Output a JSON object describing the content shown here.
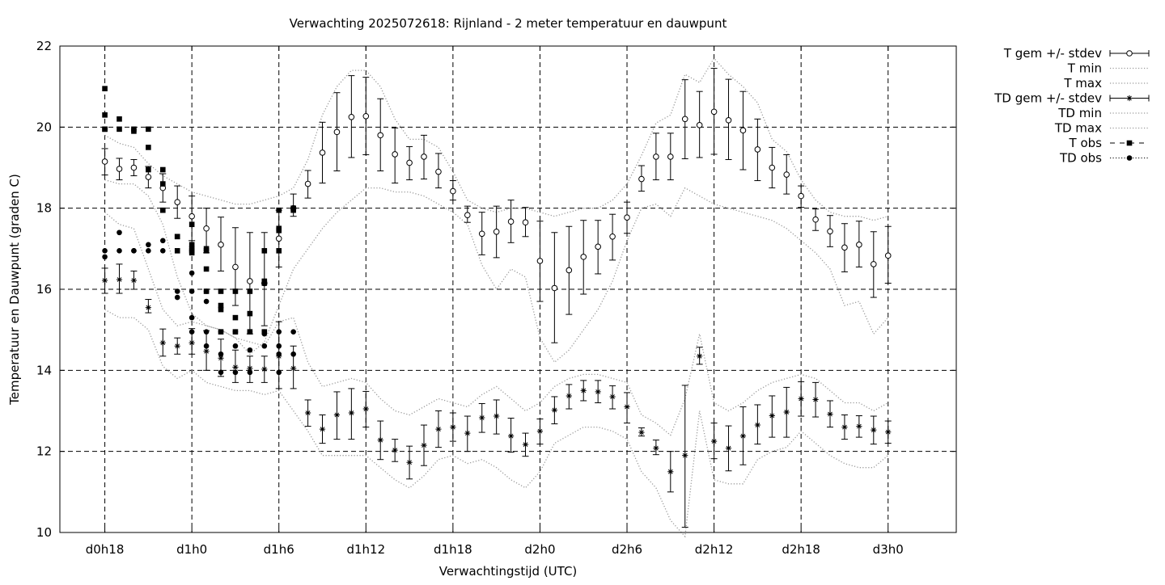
{
  "chart_data": {
    "type": "line",
    "title": "Verwachting 2025072618: Rijnland - 2 meter temperatuur en dauwpunt",
    "xlabel": "Verwachtingstijd (UTC)",
    "ylabel": "Temperatuur en Dauwpunt (graden C)",
    "x_ticks": [
      "d0h18",
      "d1h0",
      "d1h6",
      "d1h12",
      "d1h18",
      "d2h0",
      "d2h6",
      "d2h12",
      "d2h18",
      "d3h0"
    ],
    "x_tick_hours": [
      18,
      24,
      30,
      36,
      42,
      48,
      54,
      60,
      66,
      72
    ],
    "xlim": [
      14.9,
      76.7
    ],
    "ylim": [
      10,
      22
    ],
    "y_ticks": [
      10,
      12,
      14,
      16,
      18,
      20,
      22
    ],
    "grid": true,
    "legend_position": "outside-right",
    "series": [
      {
        "name": "T gem +/- stdev",
        "style": "errorbar-open-circle",
        "x": [
          18,
          19,
          20,
          21,
          22,
          23,
          24,
          25,
          26,
          27,
          28,
          29,
          30,
          31,
          32,
          33,
          34,
          35,
          36,
          37,
          38,
          39,
          40,
          41,
          42,
          43,
          44,
          45,
          46,
          47,
          48,
          49,
          50,
          51,
          52,
          53,
          54,
          55,
          56,
          57,
          58,
          59,
          60,
          61,
          62,
          63,
          64,
          65,
          66,
          67,
          68,
          69,
          70,
          71,
          72
        ],
        "y": [
          19.15,
          18.97,
          19.0,
          18.77,
          18.5,
          18.15,
          17.8,
          17.5,
          17.1,
          16.55,
          16.2,
          16.15,
          17.25,
          18.0,
          18.6,
          19.37,
          19.88,
          20.25,
          20.27,
          19.8,
          19.33,
          19.12,
          19.27,
          18.9,
          18.42,
          17.83,
          17.37,
          17.42,
          17.67,
          17.65,
          16.7,
          16.03,
          16.47,
          16.8,
          17.05,
          17.3,
          17.77,
          18.72,
          19.27,
          19.27,
          20.2,
          20.05,
          20.38,
          20.17,
          19.92,
          19.45,
          19.0,
          18.83,
          18.3,
          17.72,
          17.43,
          17.03,
          17.1,
          16.62,
          16.83
        ],
        "y_low": [
          18.82,
          18.7,
          18.8,
          18.5,
          18.15,
          17.75,
          17.2,
          16.9,
          16.45,
          15.6,
          14.9,
          15.1,
          16.55,
          17.8,
          18.25,
          18.62,
          18.92,
          19.25,
          19.32,
          18.92,
          18.62,
          18.7,
          18.72,
          18.5,
          18.2,
          17.65,
          16.85,
          16.78,
          17.15,
          17.3,
          15.7,
          14.68,
          15.38,
          15.88,
          16.38,
          16.72,
          17.38,
          18.42,
          18.7,
          18.7,
          19.22,
          19.25,
          19.33,
          19.2,
          18.95,
          18.68,
          18.5,
          18.35,
          18.02,
          17.45,
          17.05,
          16.43,
          16.55,
          15.8,
          16.15
        ],
        "y_high": [
          19.47,
          19.23,
          19.2,
          19.03,
          18.85,
          18.55,
          18.3,
          18.0,
          17.78,
          17.52,
          17.4,
          17.4,
          17.95,
          18.35,
          18.93,
          20.12,
          20.85,
          21.27,
          21.23,
          20.7,
          19.98,
          19.52,
          19.8,
          19.35,
          18.68,
          18.05,
          17.9,
          18.05,
          18.2,
          18.02,
          17.68,
          17.4,
          17.55,
          17.7,
          17.7,
          17.85,
          18.15,
          19.05,
          19.85,
          19.85,
          21.17,
          20.88,
          21.45,
          21.18,
          20.88,
          20.2,
          19.5,
          19.32,
          18.55,
          17.98,
          17.82,
          17.62,
          17.68,
          17.42,
          17.55
        ]
      },
      {
        "name": "T min",
        "style": "dotted",
        "x": [
          18,
          19,
          20,
          21,
          22,
          23,
          24,
          25,
          26,
          27,
          28,
          29,
          30,
          31,
          32,
          33,
          34,
          35,
          36,
          37,
          38,
          39,
          40,
          41,
          42,
          43,
          44,
          45,
          46,
          47,
          48,
          49,
          50,
          51,
          52,
          53,
          54,
          55,
          56,
          57,
          58,
          59,
          60,
          61,
          62,
          63,
          64,
          65,
          66,
          67,
          68,
          69,
          70,
          71,
          72
        ],
        "y": [
          18.7,
          18.6,
          18.6,
          18.3,
          17.6,
          16.3,
          15.4,
          15.1,
          15.0,
          14.8,
          14.4,
          14.7,
          15.6,
          16.5,
          17.0,
          17.5,
          17.9,
          18.2,
          18.5,
          18.5,
          18.4,
          18.4,
          18.3,
          18.1,
          17.9,
          17.6,
          16.6,
          16.0,
          16.5,
          16.3,
          14.8,
          14.2,
          14.5,
          15.0,
          15.5,
          16.2,
          17.2,
          18.0,
          18.1,
          17.8,
          18.5,
          18.3,
          18.1,
          18.0,
          17.9,
          17.8,
          17.7,
          17.5,
          17.2,
          16.9,
          16.5,
          15.6,
          15.7,
          14.9,
          15.3
        ]
      },
      {
        "name": "T max",
        "style": "dotted",
        "x": [
          18,
          19,
          20,
          21,
          22,
          23,
          24,
          25,
          26,
          27,
          28,
          29,
          30,
          31,
          32,
          33,
          34,
          35,
          36,
          37,
          38,
          39,
          40,
          41,
          42,
          43,
          44,
          45,
          46,
          47,
          48,
          49,
          50,
          51,
          52,
          53,
          54,
          55,
          56,
          57,
          58,
          59,
          60,
          61,
          62,
          63,
          64,
          65,
          66,
          67,
          68,
          69,
          70,
          71,
          72
        ],
        "y": [
          19.8,
          19.6,
          19.5,
          19.1,
          18.8,
          18.6,
          18.4,
          18.3,
          18.2,
          18.1,
          18.1,
          18.2,
          18.3,
          18.5,
          19.2,
          20.3,
          21.0,
          21.4,
          21.4,
          21.0,
          20.2,
          19.7,
          19.7,
          19.5,
          18.9,
          18.2,
          18.0,
          17.9,
          18.0,
          18.0,
          17.9,
          17.8,
          17.9,
          18.0,
          18.0,
          18.2,
          18.6,
          19.3,
          20.1,
          20.3,
          21.3,
          21.1,
          21.7,
          21.3,
          21.0,
          20.6,
          19.7,
          19.4,
          18.7,
          18.2,
          17.9,
          17.8,
          17.8,
          17.7,
          17.8
        ]
      },
      {
        "name": "TD gem +/- stdev",
        "style": "errorbar-star",
        "x": [
          18,
          19,
          20,
          21,
          22,
          23,
          24,
          25,
          26,
          27,
          28,
          29,
          30,
          31,
          32,
          33,
          34,
          35,
          36,
          37,
          38,
          39,
          40,
          41,
          42,
          43,
          44,
          45,
          46,
          47,
          48,
          49,
          50,
          51,
          52,
          53,
          54,
          55,
          56,
          57,
          58,
          59,
          60,
          61,
          62,
          63,
          64,
          65,
          66,
          67,
          68,
          69,
          70,
          71,
          72
        ],
        "y": [
          16.22,
          16.24,
          16.22,
          15.55,
          14.68,
          14.6,
          14.68,
          14.47,
          14.3,
          14.08,
          14.05,
          14.03,
          14.35,
          14.05,
          12.95,
          12.55,
          12.9,
          12.95,
          13.05,
          12.28,
          12.03,
          11.73,
          12.15,
          12.55,
          12.6,
          12.45,
          12.83,
          12.87,
          12.38,
          12.17,
          12.5,
          13.02,
          13.37,
          13.5,
          13.47,
          13.35,
          13.1,
          12.47,
          12.08,
          11.5,
          11.9,
          14.35,
          12.25,
          12.08,
          12.38,
          12.65,
          12.88,
          12.97,
          13.3,
          13.28,
          12.92,
          12.6,
          12.62,
          12.53,
          12.48
        ],
        "y_low": [
          15.9,
          15.9,
          16.0,
          15.42,
          14.35,
          14.4,
          14.4,
          14.0,
          13.85,
          13.7,
          13.7,
          13.7,
          13.55,
          13.55,
          12.62,
          12.2,
          12.3,
          12.3,
          12.6,
          11.8,
          11.75,
          11.32,
          11.65,
          12.1,
          12.25,
          12.0,
          12.47,
          12.43,
          11.98,
          11.88,
          12.18,
          12.68,
          13.05,
          13.25,
          13.2,
          13.05,
          12.7,
          12.38,
          11.92,
          11.0,
          10.13,
          14.15,
          11.82,
          11.52,
          11.67,
          12.18,
          12.35,
          12.35,
          12.87,
          12.85,
          12.6,
          12.3,
          12.35,
          12.18,
          12.2
        ],
        "y_high": [
          16.52,
          16.62,
          16.45,
          15.75,
          15.02,
          14.8,
          15.03,
          14.98,
          14.77,
          14.5,
          14.35,
          14.35,
          15.2,
          14.6,
          13.27,
          12.9,
          13.47,
          13.55,
          13.48,
          12.75,
          12.3,
          12.13,
          12.65,
          13.0,
          12.95,
          12.87,
          13.18,
          13.27,
          12.82,
          12.45,
          12.8,
          13.35,
          13.65,
          13.75,
          13.75,
          13.62,
          13.45,
          12.58,
          12.28,
          12.0,
          13.63,
          14.57,
          12.7,
          12.63,
          13.1,
          13.15,
          13.37,
          13.58,
          13.72,
          13.7,
          13.25,
          12.9,
          12.88,
          12.87,
          12.75
        ]
      },
      {
        "name": "TD min",
        "style": "dotted",
        "x": [
          18,
          19,
          20,
          21,
          22,
          23,
          24,
          25,
          26,
          27,
          28,
          29,
          30,
          31,
          32,
          33,
          34,
          35,
          36,
          37,
          38,
          39,
          40,
          41,
          42,
          43,
          44,
          45,
          46,
          47,
          48,
          49,
          50,
          51,
          52,
          53,
          54,
          55,
          56,
          57,
          58,
          59,
          60,
          61,
          62,
          63,
          64,
          65,
          66,
          67,
          68,
          69,
          70,
          71,
          72
        ],
        "y": [
          15.5,
          15.3,
          15.3,
          15.0,
          14.1,
          13.8,
          14.0,
          13.7,
          13.6,
          13.5,
          13.5,
          13.4,
          13.5,
          13.0,
          12.5,
          11.9,
          11.9,
          11.9,
          11.9,
          11.6,
          11.3,
          11.1,
          11.4,
          11.8,
          11.9,
          11.7,
          11.8,
          11.6,
          11.3,
          11.1,
          11.5,
          12.2,
          12.4,
          12.6,
          12.6,
          12.5,
          12.3,
          11.5,
          11.1,
          10.3,
          9.9,
          13.0,
          11.3,
          11.2,
          11.2,
          11.8,
          12.0,
          12.1,
          12.5,
          12.2,
          11.9,
          11.7,
          11.6,
          11.6,
          11.9
        ]
      },
      {
        "name": "TD max",
        "style": "dotted",
        "x": [
          18,
          19,
          20,
          21,
          22,
          23,
          24,
          25,
          26,
          27,
          28,
          29,
          30,
          31,
          32,
          33,
          34,
          35,
          36,
          37,
          38,
          39,
          40,
          41,
          42,
          43,
          44,
          45,
          46,
          47,
          48,
          49,
          50,
          51,
          52,
          53,
          54,
          55,
          56,
          57,
          58,
          59,
          60,
          61,
          62,
          63,
          64,
          65,
          66,
          67,
          68,
          69,
          70,
          71,
          72
        ],
        "y": [
          17.9,
          17.6,
          17.5,
          16.5,
          15.5,
          15.1,
          15.2,
          15.1,
          15.0,
          14.8,
          14.7,
          14.6,
          15.2,
          15.3,
          14.2,
          13.6,
          13.7,
          13.8,
          13.7,
          13.3,
          13.0,
          12.9,
          13.1,
          13.3,
          13.2,
          13.1,
          13.4,
          13.6,
          13.3,
          13.0,
          13.2,
          13.6,
          13.8,
          13.9,
          13.9,
          13.8,
          13.7,
          12.9,
          12.7,
          12.4,
          13.3,
          14.9,
          13.2,
          13.0,
          13.2,
          13.5,
          13.7,
          13.8,
          13.9,
          13.8,
          13.5,
          13.2,
          13.2,
          13.0,
          13.2
        ]
      },
      {
        "name": "T obs",
        "style": "filled-square",
        "x": [
          18,
          18,
          18,
          18,
          19,
          19,
          20,
          20,
          21,
          21,
          21,
          22,
          22,
          22,
          23,
          23,
          23,
          24,
          24,
          24,
          24,
          24,
          25,
          25,
          25,
          25,
          26,
          26,
          26,
          26,
          27,
          27,
          27,
          28,
          28,
          28,
          29,
          29,
          29,
          29,
          30,
          30,
          30,
          30,
          31,
          31
        ],
        "y": [
          20.95,
          20.3,
          19.95,
          19.95,
          20.2,
          19.95,
          19.95,
          19.9,
          19.95,
          19.5,
          18.95,
          18.95,
          18.6,
          17.95,
          17.3,
          17.3,
          16.95,
          17.6,
          17.1,
          17.0,
          16.95,
          16.9,
          17.0,
          16.95,
          16.5,
          15.95,
          15.95,
          15.6,
          15.5,
          14.95,
          15.95,
          15.3,
          14.95,
          15.95,
          15.4,
          14.95,
          16.95,
          16.2,
          16.15,
          14.95,
          17.95,
          17.5,
          17.45,
          16.95,
          18.0,
          17.95
        ]
      },
      {
        "name": "TD obs",
        "style": "filled-circle",
        "x": [
          18,
          18,
          19,
          19,
          20,
          20,
          21,
          21,
          22,
          22,
          23,
          23,
          24,
          24,
          24,
          24,
          25,
          25,
          25,
          25,
          26,
          26,
          26,
          27,
          27,
          27,
          28,
          28,
          28,
          29,
          29,
          29,
          30,
          30,
          30,
          30,
          31,
          31
        ],
        "y": [
          16.95,
          16.8,
          17.4,
          16.95,
          16.95,
          16.95,
          17.1,
          16.95,
          17.2,
          16.95,
          15.95,
          15.8,
          16.4,
          15.95,
          15.3,
          14.95,
          15.95,
          15.7,
          14.95,
          14.6,
          14.95,
          14.4,
          13.95,
          14.95,
          14.6,
          13.95,
          14.95,
          14.5,
          13.95,
          14.95,
          14.9,
          14.6,
          14.95,
          14.6,
          14.4,
          13.95,
          14.95,
          14.4
        ]
      }
    ]
  }
}
